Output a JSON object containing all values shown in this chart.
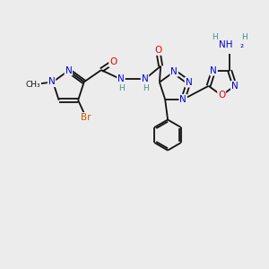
{
  "bg_color": "#ececec",
  "atom_colors": {
    "N": "#0000dd",
    "O": "#ee0000",
    "Br": "#cc5500",
    "C": "#111111",
    "H": "#4a8f8f"
  },
  "bond_color": "#111111",
  "lw": 1.3
}
